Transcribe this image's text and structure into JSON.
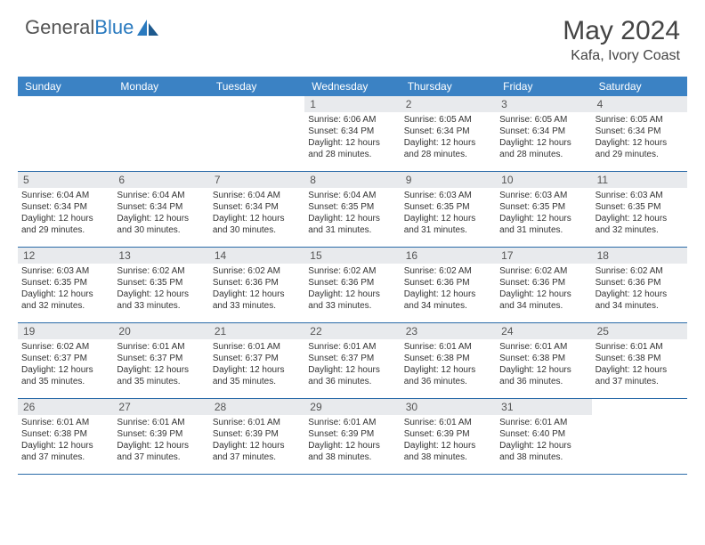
{
  "brand": {
    "part1": "General",
    "part2": "Blue"
  },
  "title": "May 2024",
  "location": "Kafa, Ivory Coast",
  "colors": {
    "header_bg": "#3b82c4",
    "daynum_bg": "#e8eaed",
    "row_border": "#2a6aa8",
    "text": "#333333",
    "brand_gray": "#555555",
    "brand_blue": "#2a7abf"
  },
  "dow": [
    "Sunday",
    "Monday",
    "Tuesday",
    "Wednesday",
    "Thursday",
    "Friday",
    "Saturday"
  ],
  "weeks": [
    [
      {
        "n": "",
        "lines": []
      },
      {
        "n": "",
        "lines": []
      },
      {
        "n": "",
        "lines": []
      },
      {
        "n": "1",
        "lines": [
          "Sunrise: 6:06 AM",
          "Sunset: 6:34 PM",
          "Daylight: 12 hours",
          "and 28 minutes."
        ]
      },
      {
        "n": "2",
        "lines": [
          "Sunrise: 6:05 AM",
          "Sunset: 6:34 PM",
          "Daylight: 12 hours",
          "and 28 minutes."
        ]
      },
      {
        "n": "3",
        "lines": [
          "Sunrise: 6:05 AM",
          "Sunset: 6:34 PM",
          "Daylight: 12 hours",
          "and 28 minutes."
        ]
      },
      {
        "n": "4",
        "lines": [
          "Sunrise: 6:05 AM",
          "Sunset: 6:34 PM",
          "Daylight: 12 hours",
          "and 29 minutes."
        ]
      }
    ],
    [
      {
        "n": "5",
        "lines": [
          "Sunrise: 6:04 AM",
          "Sunset: 6:34 PM",
          "Daylight: 12 hours",
          "and 29 minutes."
        ]
      },
      {
        "n": "6",
        "lines": [
          "Sunrise: 6:04 AM",
          "Sunset: 6:34 PM",
          "Daylight: 12 hours",
          "and 30 minutes."
        ]
      },
      {
        "n": "7",
        "lines": [
          "Sunrise: 6:04 AM",
          "Sunset: 6:34 PM",
          "Daylight: 12 hours",
          "and 30 minutes."
        ]
      },
      {
        "n": "8",
        "lines": [
          "Sunrise: 6:04 AM",
          "Sunset: 6:35 PM",
          "Daylight: 12 hours",
          "and 31 minutes."
        ]
      },
      {
        "n": "9",
        "lines": [
          "Sunrise: 6:03 AM",
          "Sunset: 6:35 PM",
          "Daylight: 12 hours",
          "and 31 minutes."
        ]
      },
      {
        "n": "10",
        "lines": [
          "Sunrise: 6:03 AM",
          "Sunset: 6:35 PM",
          "Daylight: 12 hours",
          "and 31 minutes."
        ]
      },
      {
        "n": "11",
        "lines": [
          "Sunrise: 6:03 AM",
          "Sunset: 6:35 PM",
          "Daylight: 12 hours",
          "and 32 minutes."
        ]
      }
    ],
    [
      {
        "n": "12",
        "lines": [
          "Sunrise: 6:03 AM",
          "Sunset: 6:35 PM",
          "Daylight: 12 hours",
          "and 32 minutes."
        ]
      },
      {
        "n": "13",
        "lines": [
          "Sunrise: 6:02 AM",
          "Sunset: 6:35 PM",
          "Daylight: 12 hours",
          "and 33 minutes."
        ]
      },
      {
        "n": "14",
        "lines": [
          "Sunrise: 6:02 AM",
          "Sunset: 6:36 PM",
          "Daylight: 12 hours",
          "and 33 minutes."
        ]
      },
      {
        "n": "15",
        "lines": [
          "Sunrise: 6:02 AM",
          "Sunset: 6:36 PM",
          "Daylight: 12 hours",
          "and 33 minutes."
        ]
      },
      {
        "n": "16",
        "lines": [
          "Sunrise: 6:02 AM",
          "Sunset: 6:36 PM",
          "Daylight: 12 hours",
          "and 34 minutes."
        ]
      },
      {
        "n": "17",
        "lines": [
          "Sunrise: 6:02 AM",
          "Sunset: 6:36 PM",
          "Daylight: 12 hours",
          "and 34 minutes."
        ]
      },
      {
        "n": "18",
        "lines": [
          "Sunrise: 6:02 AM",
          "Sunset: 6:36 PM",
          "Daylight: 12 hours",
          "and 34 minutes."
        ]
      }
    ],
    [
      {
        "n": "19",
        "lines": [
          "Sunrise: 6:02 AM",
          "Sunset: 6:37 PM",
          "Daylight: 12 hours",
          "and 35 minutes."
        ]
      },
      {
        "n": "20",
        "lines": [
          "Sunrise: 6:01 AM",
          "Sunset: 6:37 PM",
          "Daylight: 12 hours",
          "and 35 minutes."
        ]
      },
      {
        "n": "21",
        "lines": [
          "Sunrise: 6:01 AM",
          "Sunset: 6:37 PM",
          "Daylight: 12 hours",
          "and 35 minutes."
        ]
      },
      {
        "n": "22",
        "lines": [
          "Sunrise: 6:01 AM",
          "Sunset: 6:37 PM",
          "Daylight: 12 hours",
          "and 36 minutes."
        ]
      },
      {
        "n": "23",
        "lines": [
          "Sunrise: 6:01 AM",
          "Sunset: 6:38 PM",
          "Daylight: 12 hours",
          "and 36 minutes."
        ]
      },
      {
        "n": "24",
        "lines": [
          "Sunrise: 6:01 AM",
          "Sunset: 6:38 PM",
          "Daylight: 12 hours",
          "and 36 minutes."
        ]
      },
      {
        "n": "25",
        "lines": [
          "Sunrise: 6:01 AM",
          "Sunset: 6:38 PM",
          "Daylight: 12 hours",
          "and 37 minutes."
        ]
      }
    ],
    [
      {
        "n": "26",
        "lines": [
          "Sunrise: 6:01 AM",
          "Sunset: 6:38 PM",
          "Daylight: 12 hours",
          "and 37 minutes."
        ]
      },
      {
        "n": "27",
        "lines": [
          "Sunrise: 6:01 AM",
          "Sunset: 6:39 PM",
          "Daylight: 12 hours",
          "and 37 minutes."
        ]
      },
      {
        "n": "28",
        "lines": [
          "Sunrise: 6:01 AM",
          "Sunset: 6:39 PM",
          "Daylight: 12 hours",
          "and 37 minutes."
        ]
      },
      {
        "n": "29",
        "lines": [
          "Sunrise: 6:01 AM",
          "Sunset: 6:39 PM",
          "Daylight: 12 hours",
          "and 38 minutes."
        ]
      },
      {
        "n": "30",
        "lines": [
          "Sunrise: 6:01 AM",
          "Sunset: 6:39 PM",
          "Daylight: 12 hours",
          "and 38 minutes."
        ]
      },
      {
        "n": "31",
        "lines": [
          "Sunrise: 6:01 AM",
          "Sunset: 6:40 PM",
          "Daylight: 12 hours",
          "and 38 minutes."
        ]
      },
      {
        "n": "",
        "lines": []
      }
    ]
  ]
}
